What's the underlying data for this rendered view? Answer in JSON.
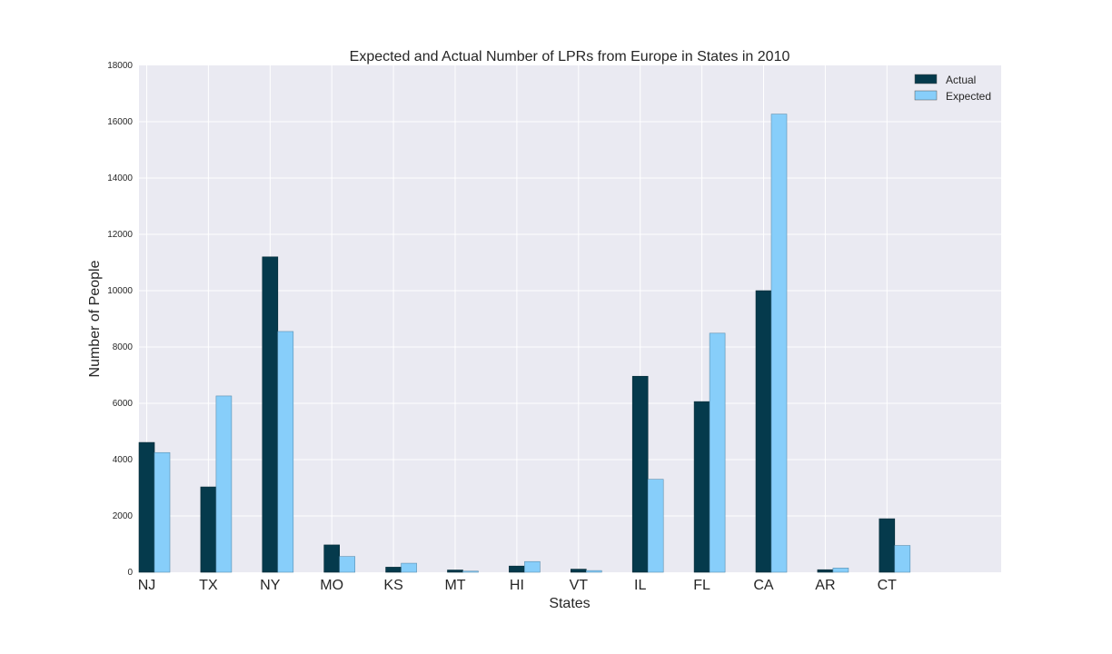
{
  "chart_data": {
    "type": "bar",
    "title": "Expected and Actual Number of LPRs from Europe in States in 2010",
    "xlabel": "States",
    "ylabel": "Number of People",
    "categories": [
      "NJ",
      "TX",
      "NY",
      "MO",
      "KS",
      "MT",
      "HI",
      "VT",
      "IL",
      "FL",
      "CA",
      "AR",
      "CT"
    ],
    "series": [
      {
        "name": "Actual",
        "color": "#053a4c",
        "values": [
          4610,
          3030,
          11200,
          970,
          180,
          80,
          220,
          110,
          6960,
          6060,
          10000,
          90,
          1900
        ]
      },
      {
        "name": "Expected",
        "color": "#87cefa",
        "values": [
          4250,
          6260,
          8550,
          560,
          320,
          40,
          380,
          60,
          3300,
          8490,
          16270,
          150,
          950
        ]
      }
    ],
    "ylim": [
      0,
      18000
    ],
    "yticks": [
      "0",
      "2000",
      "4000",
      "6000",
      "8000",
      "10000",
      "12000",
      "14000",
      "16000",
      "18000"
    ],
    "grid": true,
    "legend_position": "top-right",
    "background": "#eaeaf2"
  }
}
